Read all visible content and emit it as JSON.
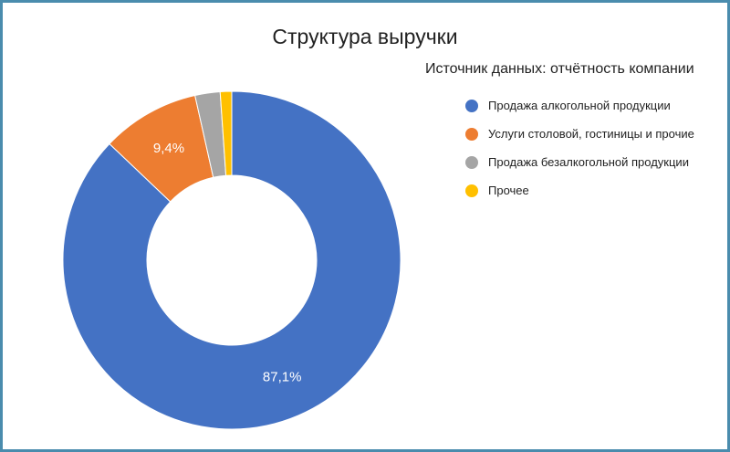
{
  "chart_data": {
    "type": "pie",
    "style": "donut",
    "title": "Структура выручки",
    "subtitle": "Источник данных: отчётность компании",
    "legend_position": "right",
    "slices": [
      {
        "name": "Продажа алкогольной продукции",
        "value": 87.1,
        "label": "87,1%",
        "color": "#4472c4"
      },
      {
        "name": "Услуги столовой, гостиницы и прочие",
        "value": 9.4,
        "label": "9,4%",
        "color": "#ed7d31"
      },
      {
        "name": "Продажа безалкогольной продукции",
        "value": 2.4,
        "label": "",
        "color": "#a5a5a5"
      },
      {
        "name": "Прочее",
        "value": 1.1,
        "label": "",
        "color": "#ffc000"
      }
    ]
  }
}
